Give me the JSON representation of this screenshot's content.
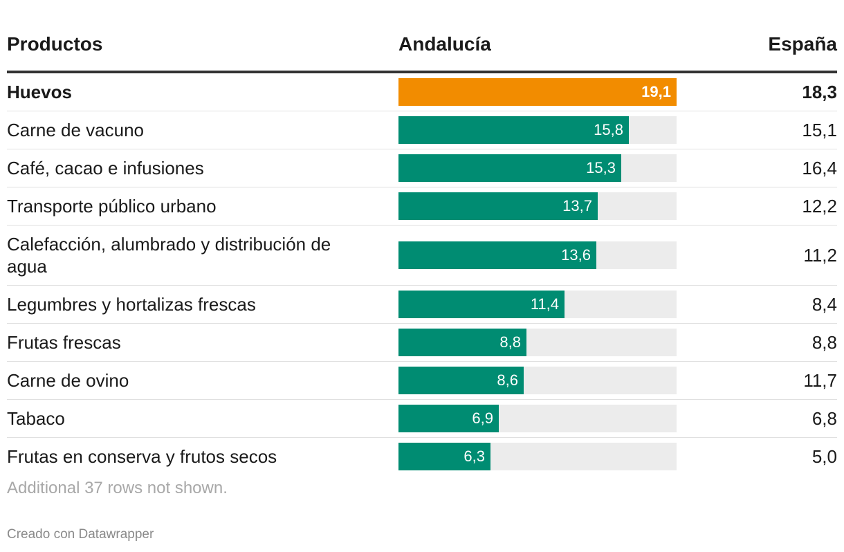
{
  "headers": {
    "products": "Productos",
    "andalucia": "Andalucía",
    "espana": "España"
  },
  "colors": {
    "highlight": "#f28c00",
    "bar": "#008c72",
    "track": "#ececec"
  },
  "chart_data": {
    "type": "bar",
    "title": "",
    "xlim": [
      0,
      19.1
    ],
    "series": [
      {
        "name": "Andalucía",
        "values": [
          19.1,
          15.8,
          15.3,
          13.7,
          13.6,
          11.4,
          8.8,
          8.6,
          6.9,
          6.3
        ]
      },
      {
        "name": "España",
        "values": [
          18.3,
          15.1,
          16.4,
          12.2,
          11.2,
          8.4,
          8.8,
          11.7,
          6.8,
          5.0
        ]
      }
    ],
    "rows": [
      {
        "label": "Huevos",
        "andalucia": 19.1,
        "andalucia_label": "19,1",
        "espana": "18,3",
        "highlight": true
      },
      {
        "label": "Carne de vacuno",
        "andalucia": 15.8,
        "andalucia_label": "15,8",
        "espana": "15,1",
        "highlight": false
      },
      {
        "label": "Café, cacao e infusiones",
        "andalucia": 15.3,
        "andalucia_label": "15,3",
        "espana": "16,4",
        "highlight": false
      },
      {
        "label": "Transporte público urbano",
        "andalucia": 13.7,
        "andalucia_label": "13,7",
        "espana": "12,2",
        "highlight": false
      },
      {
        "label": "Calefacción, alumbrado y distribución de agua",
        "andalucia": 13.6,
        "andalucia_label": "13,6",
        "espana": "11,2",
        "highlight": false
      },
      {
        "label": "Legumbres y hortalizas frescas",
        "andalucia": 11.4,
        "andalucia_label": "11,4",
        "espana": "8,4",
        "highlight": false
      },
      {
        "label": "Frutas frescas",
        "andalucia": 8.8,
        "andalucia_label": "8,8",
        "espana": "8,8",
        "highlight": false
      },
      {
        "label": "Carne de ovino",
        "andalucia": 8.6,
        "andalucia_label": "8,6",
        "espana": "11,7",
        "highlight": false
      },
      {
        "label": "Tabaco",
        "andalucia": 6.9,
        "andalucia_label": "6,9",
        "espana": "6,8",
        "highlight": false
      },
      {
        "label": "Frutas en conserva y frutos secos",
        "andalucia": 6.3,
        "andalucia_label": "6,3",
        "espana": "5,0",
        "highlight": false
      }
    ]
  },
  "footer": {
    "note": "Additional 37 rows not shown.",
    "credit": "Creado con Datawrapper"
  }
}
